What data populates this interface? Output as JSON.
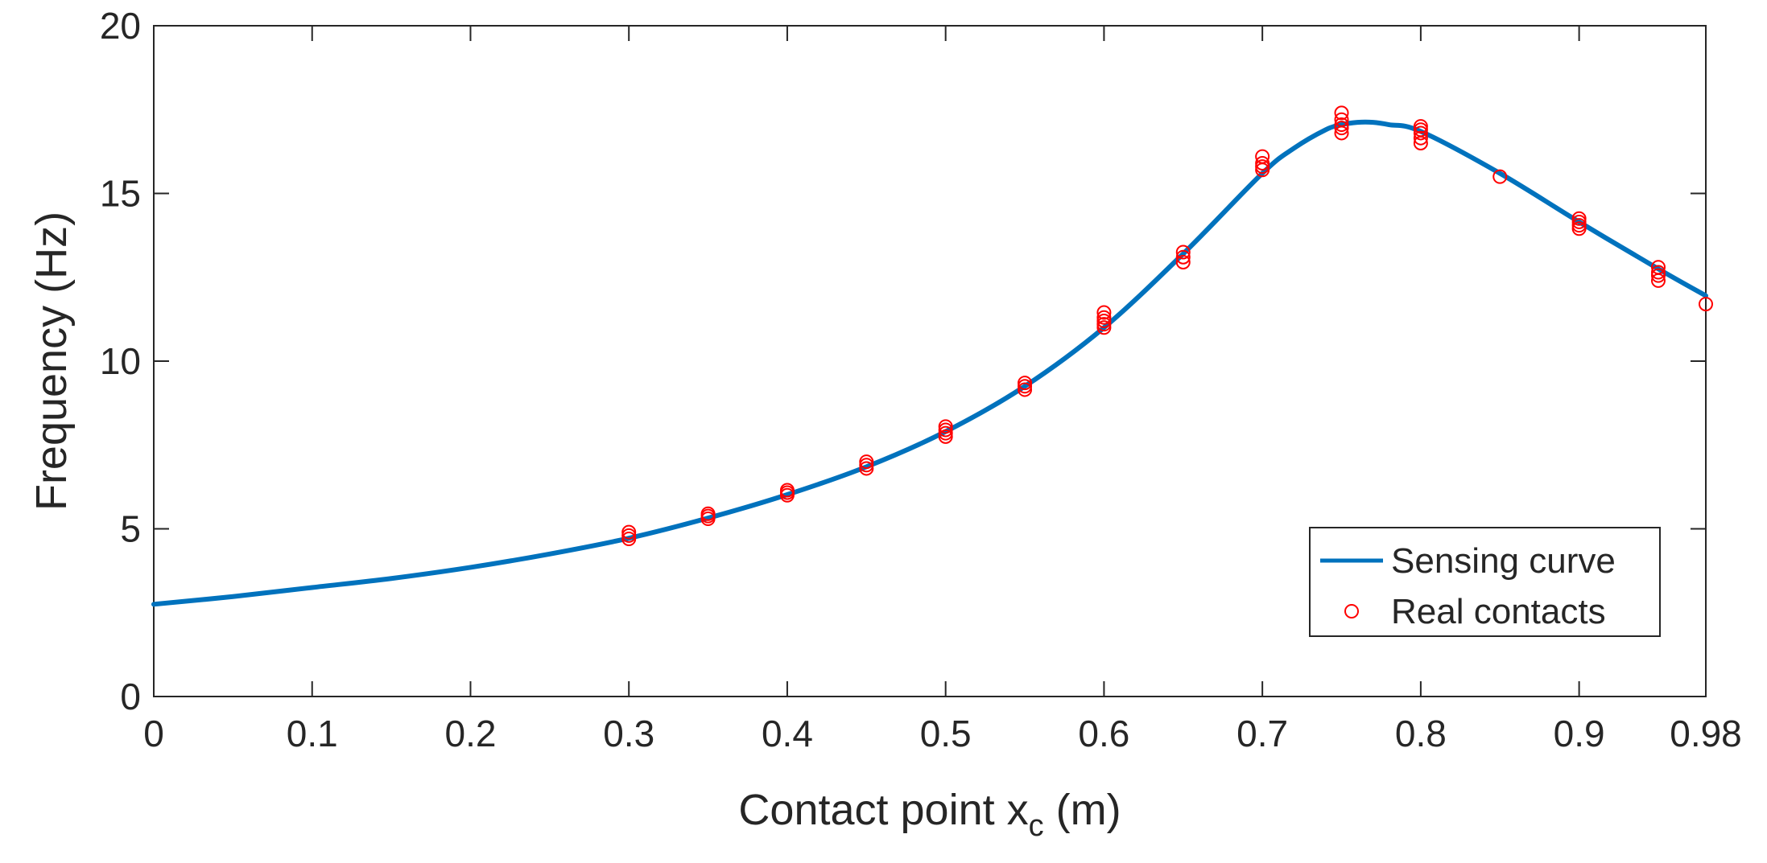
{
  "chart_data": {
    "type": "line",
    "xlabel": "Contact point x",
    "xlabel_sub": "c",
    "xlabel_unit": " (m)",
    "ylabel": "Frequency (Hz)",
    "xlim": [
      0,
      0.98
    ],
    "ylim": [
      0,
      20
    ],
    "xticks": [
      0,
      0.1,
      0.2,
      0.3,
      0.4,
      0.5,
      0.6,
      0.7,
      0.8,
      0.9,
      0.98
    ],
    "xtick_labels": [
      "0",
      "0.1",
      "0.2",
      "0.3",
      "0.4",
      "0.5",
      "0.6",
      "0.7",
      "0.8",
      "0.9",
      "0.98"
    ],
    "yticks": [
      0,
      5,
      10,
      15,
      20
    ],
    "ytick_labels": [
      "0",
      "5",
      "10",
      "15",
      "20"
    ],
    "grid": false,
    "legend_position": "lower-right",
    "series": [
      {
        "name": "Sensing curve",
        "kind": "line",
        "color": "#0072BD",
        "x": [
          0,
          0.05,
          0.1,
          0.15,
          0.2,
          0.25,
          0.3,
          0.35,
          0.4,
          0.45,
          0.5,
          0.55,
          0.6,
          0.65,
          0.7,
          0.72,
          0.74,
          0.75,
          0.76,
          0.77,
          0.78,
          0.8,
          0.85,
          0.9,
          0.95,
          0.98
        ],
        "y": [
          2.75,
          2.98,
          3.25,
          3.52,
          3.85,
          4.25,
          4.72,
          5.32,
          6.02,
          6.85,
          7.9,
          9.25,
          11.0,
          13.2,
          15.6,
          16.35,
          16.9,
          17.05,
          17.12,
          17.12,
          17.05,
          16.85,
          15.6,
          14.15,
          12.75,
          11.95
        ]
      },
      {
        "name": "Real contacts",
        "kind": "scatter",
        "color": "#FF0000",
        "x": [
          0.3,
          0.3,
          0.3,
          0.35,
          0.35,
          0.35,
          0.4,
          0.4,
          0.4,
          0.45,
          0.45,
          0.45,
          0.5,
          0.5,
          0.5,
          0.5,
          0.55,
          0.55,
          0.55,
          0.6,
          0.6,
          0.6,
          0.6,
          0.6,
          0.65,
          0.65,
          0.65,
          0.7,
          0.7,
          0.7,
          0.7,
          0.75,
          0.75,
          0.75,
          0.75,
          0.75,
          0.8,
          0.8,
          0.8,
          0.8,
          0.8,
          0.85,
          0.9,
          0.9,
          0.9,
          0.9,
          0.95,
          0.95,
          0.95,
          0.95,
          0.98
        ],
        "y": [
          4.7,
          4.8,
          4.9,
          5.3,
          5.38,
          5.45,
          6.0,
          6.08,
          6.15,
          6.8,
          6.9,
          7.0,
          7.75,
          7.85,
          7.95,
          8.05,
          9.15,
          9.25,
          9.35,
          11.0,
          11.1,
          11.2,
          11.3,
          11.45,
          12.95,
          13.1,
          13.25,
          15.7,
          15.8,
          15.9,
          16.1,
          16.8,
          16.95,
          17.05,
          17.2,
          17.4,
          16.5,
          16.65,
          16.8,
          16.9,
          17.0,
          15.5,
          13.95,
          14.05,
          14.15,
          14.25,
          12.4,
          12.55,
          12.65,
          12.8,
          11.7
        ]
      }
    ]
  }
}
